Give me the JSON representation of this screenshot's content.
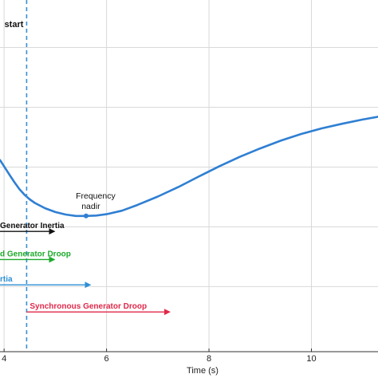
{
  "chart_data": {
    "type": "line",
    "xlabel": "Time (s)",
    "x_ticks": [
      {
        "value": 4,
        "label": "4"
      },
      {
        "value": 6,
        "label": "6"
      },
      {
        "value": 8,
        "label": "8"
      },
      {
        "value": 10,
        "label": "10"
      }
    ],
    "xlim": [
      3.92,
      11.3
    ],
    "ylim": [
      0,
      1
    ],
    "y_gridlines": [
      0.185,
      0.355,
      0.525,
      0.695,
      0.865
    ],
    "grid": true,
    "series": [
      {
        "color": "#2f7fd3",
        "x": [
          3.92,
          4.0,
          4.1,
          4.2,
          4.3,
          4.4,
          4.5,
          4.6,
          4.8,
          5.0,
          5.2,
          5.4,
          5.6,
          5.8,
          6.0,
          6.3,
          6.6,
          7.0,
          7.4,
          7.8,
          8.2,
          8.6,
          9.0,
          9.4,
          9.8,
          10.2,
          10.6,
          11.0,
          11.3
        ],
        "y": [
          0.545,
          0.527,
          0.504,
          0.482,
          0.462,
          0.446,
          0.433,
          0.423,
          0.408,
          0.397,
          0.39,
          0.386,
          0.386,
          0.387,
          0.391,
          0.401,
          0.417,
          0.441,
          0.468,
          0.498,
          0.527,
          0.554,
          0.578,
          0.6,
          0.619,
          0.635,
          0.648,
          0.66,
          0.668
        ]
      }
    ],
    "event_line": {
      "x": 4.44,
      "label": "start",
      "color": "#3a8fd0"
    },
    "annotation": {
      "text_line1": "Frequency",
      "text_line2": "nadir",
      "x": 5.6,
      "y": 0.386
    },
    "arrows": [
      {
        "label": "Generator Inertia",
        "color": "#111111",
        "x_start": 3.92,
        "x_end": 5.0,
        "y": 0.342
      },
      {
        "label": "d Generator Droop",
        "color": "#1eaa2c",
        "x_start": 3.92,
        "x_end": 5.0,
        "y": 0.262
      },
      {
        "label": "rtia",
        "color": "#2b8fd6",
        "x_start": 3.92,
        "x_end": 5.7,
        "y": 0.19
      },
      {
        "label": "Synchronous Generator Droop",
        "color": "#e0284a",
        "x_start": 4.44,
        "x_end": 7.25,
        "y": 0.113
      }
    ]
  }
}
